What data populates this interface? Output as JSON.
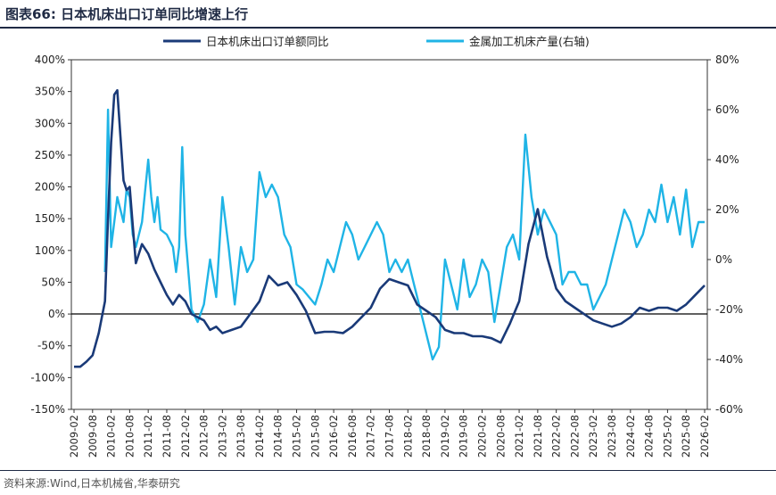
{
  "header": {
    "title": "图表66:  日本机床出口订单同比增速上行"
  },
  "footer": {
    "source": "资料来源:Wind,日本机械省,华泰研究"
  },
  "chart_data": {
    "type": "line",
    "title": "",
    "xlabel": "",
    "ylabel": "",
    "ylim": [
      -150,
      400
    ],
    "y2lim": [
      -60,
      80
    ],
    "legend_position": "top",
    "y_ticks": [
      "400%",
      "350%",
      "300%",
      "250%",
      "200%",
      "150%",
      "100%",
      "50%",
      "0%",
      "-50%",
      "-100%",
      "-150%"
    ],
    "y2_ticks": [
      "80%",
      "60%",
      "40%",
      "20%",
      "0%",
      "-20%",
      "-40%",
      "-60%"
    ],
    "x_ticks": [
      "2009-02",
      "2009-08",
      "2010-02",
      "2010-08",
      "2011-02",
      "2011-08",
      "2012-02",
      "2012-08",
      "2013-02",
      "2013-08",
      "2014-02",
      "2014-08",
      "2015-02",
      "2015-08",
      "2016-02",
      "2016-08",
      "2017-02",
      "2017-08",
      "2018-02",
      "2018-08",
      "2019-02",
      "2019-08",
      "2020-02",
      "2020-08",
      "2021-02",
      "2021-08",
      "2022-02",
      "2022-08",
      "2023-02",
      "2023-08",
      "2024-02",
      "2024-08",
      "2025-02",
      "2025-08",
      "2026-02"
    ],
    "colors": {
      "orders": "#1a3a78",
      "production": "#1fb4e6"
    },
    "series": [
      {
        "name": "日本机床出口订单额同比",
        "axis": "left",
        "points": [
          [
            "2009-02",
            -83
          ],
          [
            "2009-04",
            -83
          ],
          [
            "2009-06",
            -75
          ],
          [
            "2009-08",
            -65
          ],
          [
            "2009-10",
            -30
          ],
          [
            "2009-12",
            20
          ],
          [
            "2010-01",
            150
          ],
          [
            "2010-02",
            270
          ],
          [
            "2010-03",
            345
          ],
          [
            "2010-04",
            352
          ],
          [
            "2010-05",
            280
          ],
          [
            "2010-06",
            210
          ],
          [
            "2010-07",
            195
          ],
          [
            "2010-08",
            200
          ],
          [
            "2010-09",
            140
          ],
          [
            "2010-10",
            80
          ],
          [
            "2010-12",
            110
          ],
          [
            "2011-02",
            95
          ],
          [
            "2011-04",
            70
          ],
          [
            "2011-06",
            50
          ],
          [
            "2011-08",
            30
          ],
          [
            "2011-10",
            15
          ],
          [
            "2011-12",
            30
          ],
          [
            "2012-02",
            20
          ],
          [
            "2012-04",
            0
          ],
          [
            "2012-06",
            -5
          ],
          [
            "2012-08",
            -10
          ],
          [
            "2012-10",
            -25
          ],
          [
            "2012-12",
            -20
          ],
          [
            "2013-02",
            -30
          ],
          [
            "2013-05",
            -25
          ],
          [
            "2013-08",
            -20
          ],
          [
            "2013-11",
            0
          ],
          [
            "2014-02",
            20
          ],
          [
            "2014-05",
            60
          ],
          [
            "2014-08",
            45
          ],
          [
            "2014-11",
            50
          ],
          [
            "2015-02",
            30
          ],
          [
            "2015-05",
            5
          ],
          [
            "2015-08",
            -30
          ],
          [
            "2015-11",
            -28
          ],
          [
            "2016-02",
            -28
          ],
          [
            "2016-05",
            -30
          ],
          [
            "2016-08",
            -20
          ],
          [
            "2016-11",
            -5
          ],
          [
            "2017-02",
            10
          ],
          [
            "2017-05",
            40
          ],
          [
            "2017-08",
            55
          ],
          [
            "2017-11",
            50
          ],
          [
            "2018-02",
            45
          ],
          [
            "2018-05",
            15
          ],
          [
            "2018-08",
            5
          ],
          [
            "2018-11",
            -5
          ],
          [
            "2019-02",
            -25
          ],
          [
            "2019-05",
            -30
          ],
          [
            "2019-08",
            -30
          ],
          [
            "2019-11",
            -35
          ],
          [
            "2020-02",
            -35
          ],
          [
            "2020-05",
            -38
          ],
          [
            "2020-08",
            -45
          ],
          [
            "2020-11",
            -15
          ],
          [
            "2021-02",
            20
          ],
          [
            "2021-05",
            110
          ],
          [
            "2021-08",
            165
          ],
          [
            "2021-11",
            90
          ],
          [
            "2022-02",
            40
          ],
          [
            "2022-05",
            20
          ],
          [
            "2022-08",
            10
          ],
          [
            "2022-11",
            0
          ],
          [
            "2023-02",
            -10
          ],
          [
            "2023-05",
            -15
          ],
          [
            "2023-08",
            -20
          ],
          [
            "2023-11",
            -15
          ],
          [
            "2024-02",
            -5
          ],
          [
            "2024-05",
            10
          ],
          [
            "2024-08",
            5
          ],
          [
            "2024-11",
            10
          ],
          [
            "2025-02",
            10
          ],
          [
            "2025-05",
            5
          ],
          [
            "2025-08",
            15
          ],
          [
            "2025-11",
            30
          ],
          [
            "2026-02",
            45
          ]
        ]
      },
      {
        "name": "金属加工机床产量(右轴)",
        "axis": "right",
        "points": [
          [
            "2009-12",
            -5
          ],
          [
            "2010-01",
            60
          ],
          [
            "2010-02",
            5
          ],
          [
            "2010-03",
            15
          ],
          [
            "2010-04",
            25
          ],
          [
            "2010-05",
            20
          ],
          [
            "2010-06",
            15
          ],
          [
            "2010-07",
            28
          ],
          [
            "2010-08",
            25
          ],
          [
            "2010-09",
            10
          ],
          [
            "2010-10",
            5
          ],
          [
            "2010-12",
            15
          ],
          [
            "2011-02",
            40
          ],
          [
            "2011-03",
            25
          ],
          [
            "2011-04",
            15
          ],
          [
            "2011-05",
            25
          ],
          [
            "2011-06",
            12
          ],
          [
            "2011-08",
            10
          ],
          [
            "2011-10",
            5
          ],
          [
            "2011-11",
            -5
          ],
          [
            "2011-12",
            5
          ],
          [
            "2012-01",
            45
          ],
          [
            "2012-02",
            10
          ],
          [
            "2012-04",
            -20
          ],
          [
            "2012-06",
            -25
          ],
          [
            "2012-08",
            -18
          ],
          [
            "2012-10",
            0
          ],
          [
            "2012-12",
            -15
          ],
          [
            "2013-02",
            25
          ],
          [
            "2013-04",
            5
          ],
          [
            "2013-06",
            -18
          ],
          [
            "2013-08",
            5
          ],
          [
            "2013-10",
            -5
          ],
          [
            "2013-12",
            0
          ],
          [
            "2014-02",
            35
          ],
          [
            "2014-04",
            25
          ],
          [
            "2014-06",
            30
          ],
          [
            "2014-08",
            25
          ],
          [
            "2014-10",
            10
          ],
          [
            "2014-12",
            5
          ],
          [
            "2015-02",
            -10
          ],
          [
            "2015-04",
            -12
          ],
          [
            "2015-06",
            -15
          ],
          [
            "2015-08",
            -18
          ],
          [
            "2015-10",
            -10
          ],
          [
            "2015-12",
            0
          ],
          [
            "2016-02",
            -5
          ],
          [
            "2016-04",
            5
          ],
          [
            "2016-06",
            15
          ],
          [
            "2016-08",
            10
          ],
          [
            "2016-10",
            0
          ],
          [
            "2016-12",
            5
          ],
          [
            "2017-02",
            10
          ],
          [
            "2017-04",
            15
          ],
          [
            "2017-06",
            10
          ],
          [
            "2017-08",
            -5
          ],
          [
            "2017-10",
            0
          ],
          [
            "2017-12",
            -5
          ],
          [
            "2018-02",
            0
          ],
          [
            "2018-04",
            -10
          ],
          [
            "2018-06",
            -20
          ],
          [
            "2018-08",
            -30
          ],
          [
            "2018-10",
            -40
          ],
          [
            "2018-12",
            -35
          ],
          [
            "2019-02",
            0
          ],
          [
            "2019-04",
            -10
          ],
          [
            "2019-06",
            -20
          ],
          [
            "2019-08",
            0
          ],
          [
            "2019-10",
            -15
          ],
          [
            "2019-12",
            -10
          ],
          [
            "2020-02",
            0
          ],
          [
            "2020-04",
            -5
          ],
          [
            "2020-06",
            -25
          ],
          [
            "2020-08",
            -10
          ],
          [
            "2020-10",
            5
          ],
          [
            "2020-12",
            10
          ],
          [
            "2021-02",
            0
          ],
          [
            "2021-04",
            50
          ],
          [
            "2021-06",
            25
          ],
          [
            "2021-08",
            10
          ],
          [
            "2021-10",
            20
          ],
          [
            "2021-12",
            15
          ],
          [
            "2022-02",
            10
          ],
          [
            "2022-04",
            -10
          ],
          [
            "2022-06",
            -5
          ],
          [
            "2022-08",
            -5
          ],
          [
            "2022-10",
            -10
          ],
          [
            "2022-12",
            -10
          ],
          [
            "2023-02",
            -20
          ],
          [
            "2023-04",
            -15
          ],
          [
            "2023-06",
            -10
          ],
          [
            "2023-08",
            0
          ],
          [
            "2023-10",
            10
          ],
          [
            "2023-12",
            20
          ],
          [
            "2024-02",
            15
          ],
          [
            "2024-04",
            5
          ],
          [
            "2024-06",
            10
          ],
          [
            "2024-08",
            20
          ],
          [
            "2024-10",
            15
          ],
          [
            "2024-12",
            30
          ],
          [
            "2025-02",
            15
          ],
          [
            "2025-04",
            25
          ],
          [
            "2025-06",
            10
          ],
          [
            "2025-08",
            28
          ],
          [
            "2025-10",
            5
          ],
          [
            "2025-12",
            15
          ],
          [
            "2026-02",
            15
          ]
        ]
      }
    ]
  }
}
